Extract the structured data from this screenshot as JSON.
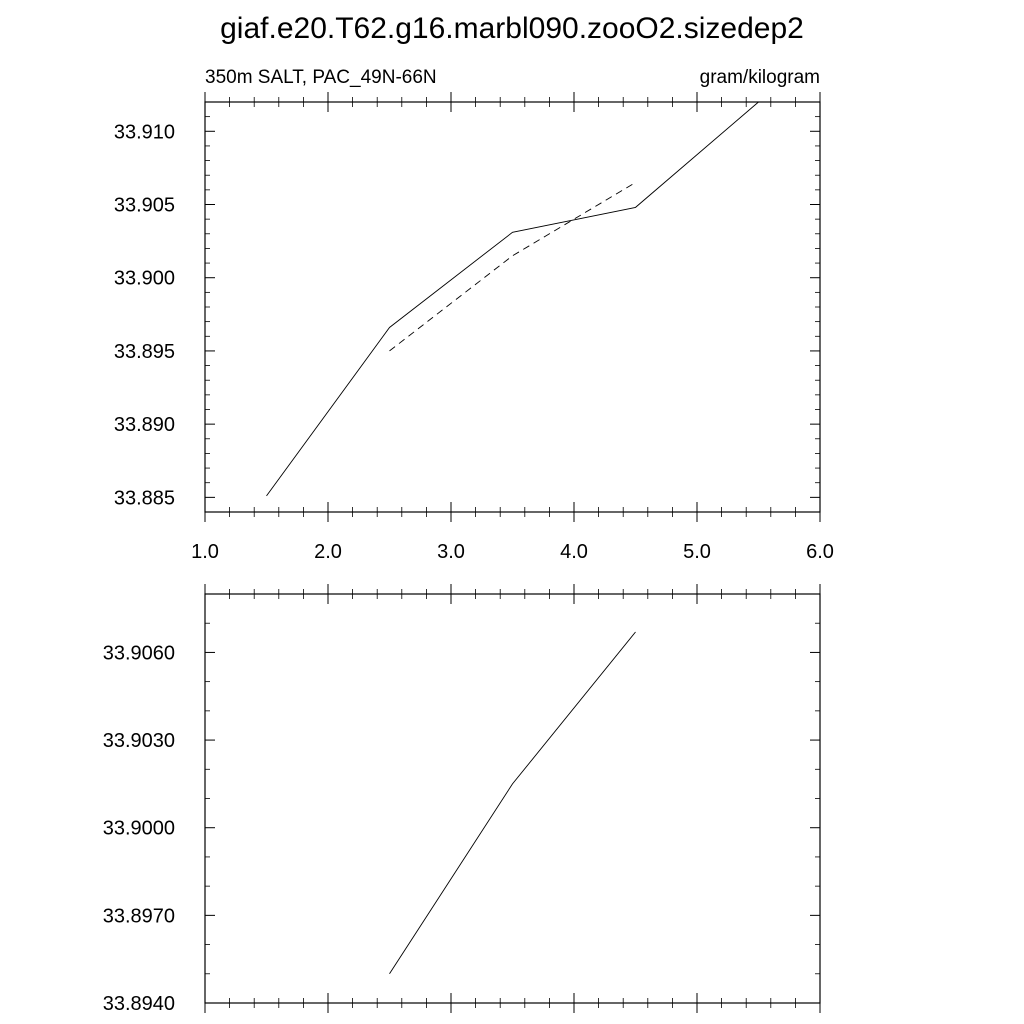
{
  "title": "giaf.e20.T62.g16.marbl090.zooO2.sizedep2",
  "chart_data": [
    {
      "type": "line",
      "left_subtitle": "350m SALT, PAC_49N-66N",
      "right_subtitle": "gram/kilogram",
      "xlim": [
        1.0,
        6.0
      ],
      "ylim": [
        33.884,
        33.912
      ],
      "x_ticks": [
        1.0,
        2.0,
        3.0,
        4.0,
        5.0,
        6.0
      ],
      "x_tick_labels": [
        "1.0",
        "2.0",
        "3.0",
        "4.0",
        "5.0",
        "6.0"
      ],
      "y_ticks": [
        33.885,
        33.89,
        33.895,
        33.9,
        33.905,
        33.91
      ],
      "y_tick_labels": [
        "33.885",
        "33.890",
        "33.895",
        "33.900",
        "33.905",
        "33.910"
      ],
      "grid": false,
      "series": [
        {
          "style": "solid",
          "x": [
            1.5,
            2.5,
            3.5,
            4.5,
            5.5
          ],
          "y": [
            33.8851,
            33.8966,
            33.9031,
            33.9048,
            33.912
          ]
        },
        {
          "style": "dashed",
          "x": [
            2.5,
            3.5,
            4.5
          ],
          "y": [
            33.895,
            33.9015,
            33.9065
          ]
        }
      ]
    },
    {
      "type": "line",
      "xlim": [
        1.0,
        6.0
      ],
      "ylim": [
        33.894,
        33.908
      ],
      "x_ticks": [
        1.0,
        2.0,
        3.0,
        4.0,
        5.0,
        6.0
      ],
      "y_ticks": [
        33.894,
        33.897,
        33.9,
        33.903,
        33.906
      ],
      "y_tick_labels": [
        "33.8940",
        "33.8970",
        "33.9000",
        "33.9030",
        "33.9060"
      ],
      "grid": false,
      "series": [
        {
          "style": "solid",
          "x": [
            2.5,
            3.5,
            4.5
          ],
          "y": [
            33.895,
            33.9015,
            33.9067
          ]
        }
      ]
    }
  ]
}
